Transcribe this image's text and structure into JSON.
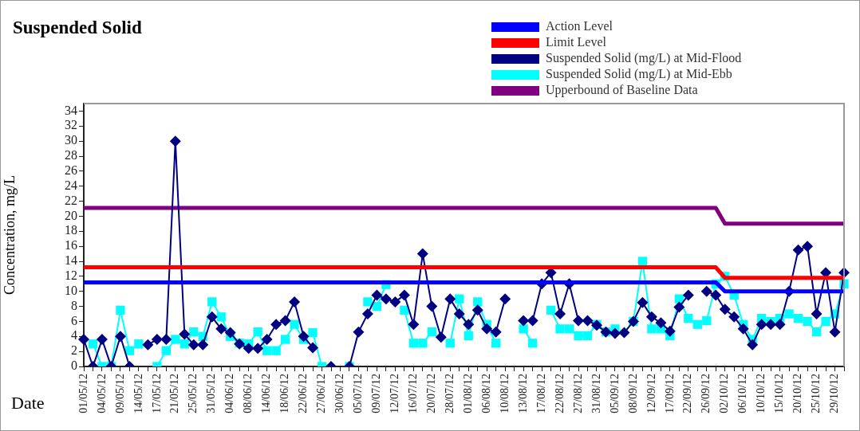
{
  "chart_data": {
    "type": "line",
    "title": "Suspended Solid",
    "xlabel": "Date",
    "ylabel": "Concentration, mg/L",
    "categories": [
      "01/05/12",
      null,
      "04/05/12",
      null,
      "09/05/12",
      null,
      "14/05/12",
      null,
      "17/05/12",
      null,
      "21/05/12",
      null,
      "25/05/12",
      null,
      "31/05/12",
      null,
      "04/06/12",
      null,
      "08/06/12",
      null,
      "14/06/12",
      null,
      "18/06/12",
      null,
      "22/06/12",
      null,
      "27/06/12",
      null,
      "30/06/12",
      null,
      "05/07/12",
      null,
      "09/07/12",
      null,
      "12/07/12",
      null,
      "16/07/12",
      null,
      "20/07/12",
      null,
      "28/07/12",
      null,
      "01/08/12",
      null,
      "06/08/12",
      null,
      "10/08/12",
      null,
      "13/08/12",
      null,
      "17/08/12",
      null,
      "22/08/12",
      null,
      "27/08/12",
      null,
      "31/08/12",
      null,
      "05/09/12",
      null,
      "08/09/12",
      null,
      "12/09/12",
      null,
      "17/09/12",
      null,
      "22/09/12",
      null,
      "26/09/12",
      null,
      "02/10/12",
      null,
      "06/10/12",
      null,
      "10/10/12",
      null,
      "15/10/12",
      null,
      "20/10/12",
      null,
      "25/10/12",
      null,
      "29/10/12",
      null
    ],
    "series": [
      {
        "name": "Action Level",
        "color": "#0000ff",
        "marker": "none",
        "values": [
          11.2,
          11.2,
          11.2,
          11.2,
          11.2,
          11.2,
          11.2,
          11.2,
          11.2,
          11.2,
          11.2,
          11.2,
          11.2,
          11.2,
          11.2,
          11.2,
          11.2,
          11.2,
          11.2,
          11.2,
          11.2,
          11.2,
          11.2,
          11.2,
          11.2,
          11.2,
          11.2,
          11.2,
          11.2,
          11.2,
          11.2,
          11.2,
          11.2,
          11.2,
          11.2,
          11.2,
          11.2,
          11.2,
          11.2,
          11.2,
          11.2,
          11.2,
          11.2,
          11.2,
          11.2,
          11.2,
          11.2,
          11.2,
          11.2,
          11.2,
          11.2,
          11.2,
          11.2,
          11.2,
          11.2,
          11.2,
          11.2,
          11.2,
          11.2,
          11.2,
          11.2,
          11.2,
          11.2,
          11.2,
          11.2,
          11.2,
          11.2,
          11.2,
          11.2,
          11.2,
          10.0,
          10.0,
          10.0,
          10.0,
          10.0,
          10.0,
          10.0,
          10.0,
          10.0,
          10.0,
          10.0,
          10.0,
          10.0,
          10.0
        ]
      },
      {
        "name": "Limit Level",
        "color": "#ff0000",
        "marker": "none",
        "values": [
          13.2,
          13.2,
          13.2,
          13.2,
          13.2,
          13.2,
          13.2,
          13.2,
          13.2,
          13.2,
          13.2,
          13.2,
          13.2,
          13.2,
          13.2,
          13.2,
          13.2,
          13.2,
          13.2,
          13.2,
          13.2,
          13.2,
          13.2,
          13.2,
          13.2,
          13.2,
          13.2,
          13.2,
          13.2,
          13.2,
          13.2,
          13.2,
          13.2,
          13.2,
          13.2,
          13.2,
          13.2,
          13.2,
          13.2,
          13.2,
          13.2,
          13.2,
          13.2,
          13.2,
          13.2,
          13.2,
          13.2,
          13.2,
          13.2,
          13.2,
          13.2,
          13.2,
          13.2,
          13.2,
          13.2,
          13.2,
          13.2,
          13.2,
          13.2,
          13.2,
          13.2,
          13.2,
          13.2,
          13.2,
          13.2,
          13.2,
          13.2,
          13.2,
          13.2,
          13.2,
          11.8,
          11.8,
          11.8,
          11.8,
          11.8,
          11.8,
          11.8,
          11.8,
          11.8,
          11.8,
          11.8,
          11.8,
          11.8,
          11.8
        ]
      },
      {
        "name": "Suspended Solid (mg/L) at Mid-Flood",
        "color": "#000080",
        "marker": "diamond",
        "values": [
          3.6,
          0,
          3.6,
          0,
          4.0,
          0,
          null,
          2.9,
          3.6,
          3.6,
          30,
          4.3,
          2.9,
          2.9,
          6.6,
          5.0,
          4.5,
          3.0,
          2.4,
          2.4,
          3.6,
          5.6,
          6.1,
          8.6,
          4.0,
          2.5,
          null,
          0,
          null,
          0,
          4.6,
          7.0,
          9.5,
          9.0,
          8.6,
          9.5,
          5.6,
          15,
          8.0,
          3.9,
          9.0,
          7.0,
          5.6,
          7.5,
          5.0,
          4.6,
          9.0,
          null,
          6.1,
          6.1,
          11.0,
          12.5,
          7.0,
          11.0,
          6.1,
          6.1,
          5.5,
          4.6,
          4.4,
          4.5,
          6.0,
          8.5,
          6.6,
          5.8,
          4.7,
          7.9,
          9.5,
          null,
          10.0,
          9.5,
          7.6,
          6.6,
          5.0,
          2.9,
          5.6,
          5.6,
          5.6,
          10.0,
          15.5,
          16.0,
          7.0,
          12.5,
          4.6,
          12.5
        ]
      },
      {
        "name": "Suspended Solid (mg/L) at Mid-Ebb",
        "color": "#00ffff",
        "marker": "square",
        "values": [
          null,
          3.0,
          0,
          0,
          7.5,
          2.1,
          3.0,
          null,
          0,
          2.1,
          3.6,
          3.0,
          4.6,
          4.0,
          8.6,
          6.6,
          4.0,
          3.1,
          3.0,
          4.6,
          2.1,
          2.1,
          3.6,
          5.6,
          3.6,
          4.5,
          0,
          null,
          null,
          0,
          null,
          8.6,
          8.0,
          10.9,
          null,
          7.5,
          3.1,
          3.1,
          4.6,
          null,
          3.1,
          9.0,
          4.1,
          8.6,
          5.6,
          3.1,
          null,
          null,
          5.0,
          3.1,
          null,
          7.5,
          5.0,
          5.0,
          4.1,
          4.1,
          5.6,
          4.6,
          5.0,
          null,
          6.0,
          14.0,
          5.0,
          5.0,
          4.1,
          9.0,
          6.4,
          5.6,
          6.1,
          11.0,
          12.0,
          9.5,
          5.6,
          3.6,
          6.4,
          6.0,
          6.4,
          7.0,
          6.4,
          6.0,
          4.6,
          6.0,
          7.0,
          11.0
        ]
      },
      {
        "name": "Upperbound of Baseline Data",
        "color": "#800080",
        "marker": "none",
        "values": [
          21.1,
          21.1,
          21.1,
          21.1,
          21.1,
          21.1,
          21.1,
          21.1,
          21.1,
          21.1,
          21.1,
          21.1,
          21.1,
          21.1,
          21.1,
          21.1,
          21.1,
          21.1,
          21.1,
          21.1,
          21.1,
          21.1,
          21.1,
          21.1,
          21.1,
          21.1,
          21.1,
          21.1,
          21.1,
          21.1,
          21.1,
          21.1,
          21.1,
          21.1,
          21.1,
          21.1,
          21.1,
          21.1,
          21.1,
          21.1,
          21.1,
          21.1,
          21.1,
          21.1,
          21.1,
          21.1,
          21.1,
          21.1,
          21.1,
          21.1,
          21.1,
          21.1,
          21.1,
          21.1,
          21.1,
          21.1,
          21.1,
          21.1,
          21.1,
          21.1,
          21.1,
          21.1,
          21.1,
          21.1,
          21.1,
          21.1,
          21.1,
          21.1,
          21.1,
          21.1,
          19.0,
          19.0,
          19.0,
          19.0,
          19.0,
          19.0,
          19.0,
          19.0,
          19.0,
          19.0,
          19.0,
          19.0,
          19.0,
          19.0
        ]
      }
    ],
    "ylim": [
      0,
      35
    ],
    "yticks": [
      0,
      2,
      4,
      6,
      8,
      10,
      12,
      14,
      16,
      18,
      20,
      22,
      24,
      26,
      28,
      30,
      32,
      34
    ],
    "grid": false,
    "legend": "top right"
  }
}
